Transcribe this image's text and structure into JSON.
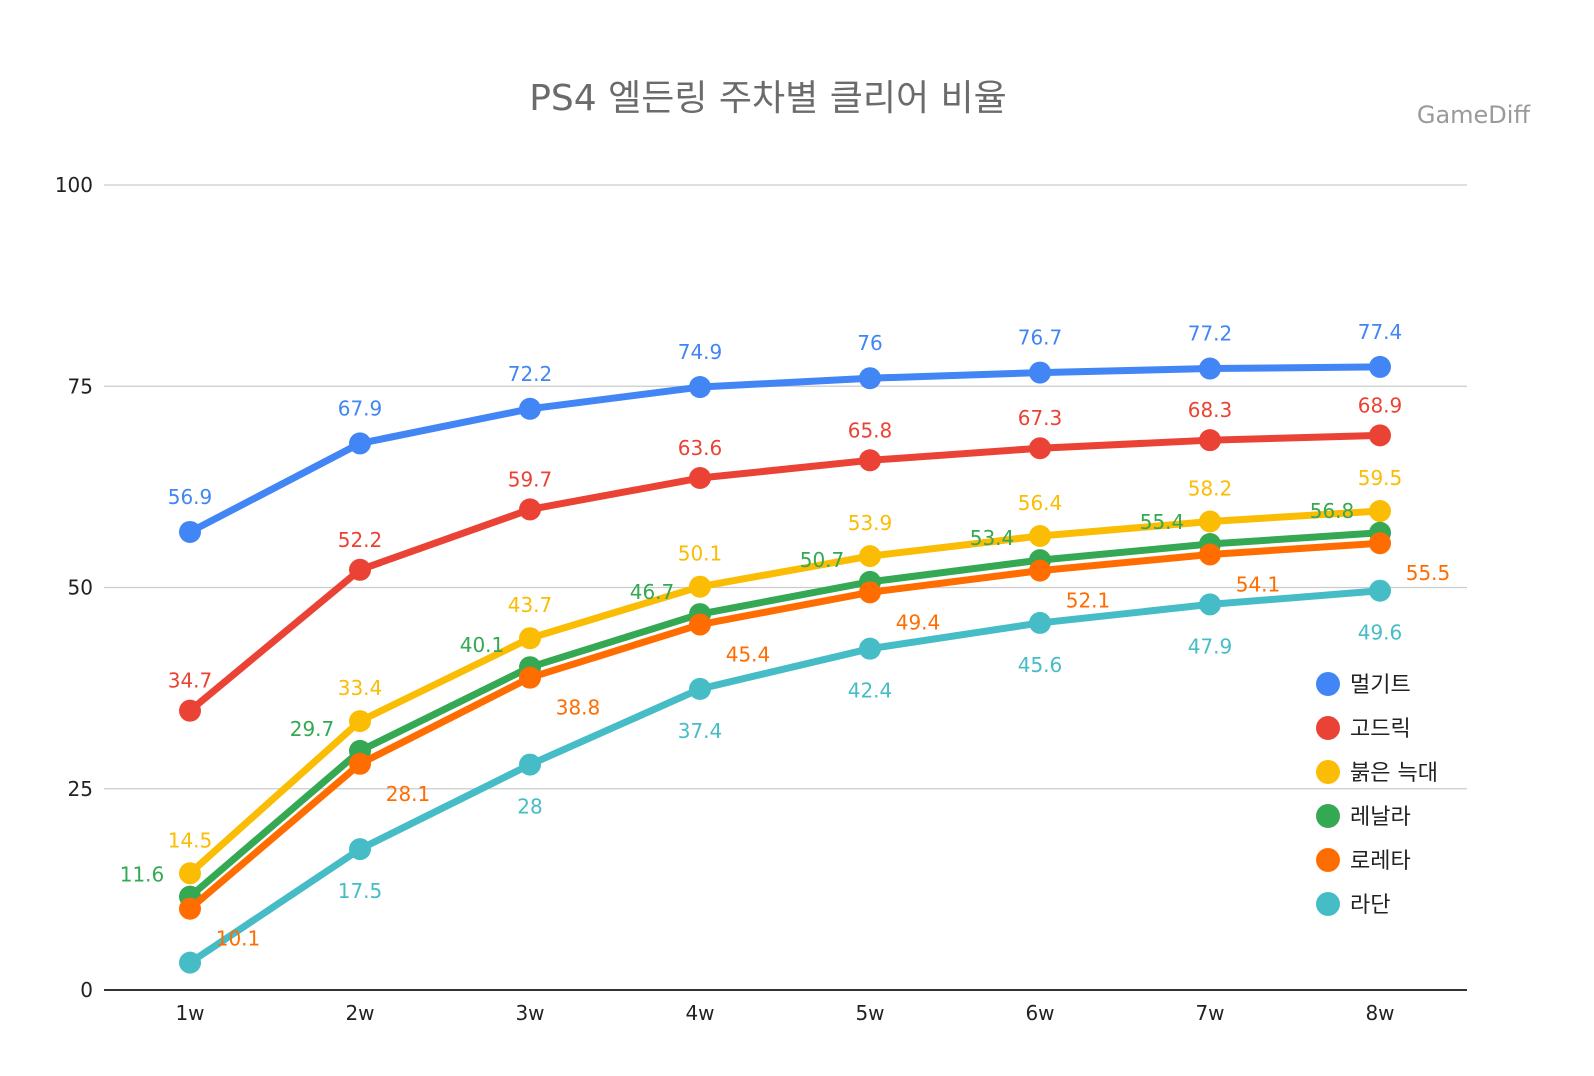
{
  "chart_data": {
    "type": "line",
    "title": "PS4 엘든링 주차별 클리어 비율",
    "watermark": "GameDiff",
    "categories": [
      "1w",
      "2w",
      "3w",
      "4w",
      "5w",
      "6w",
      "7w",
      "8w"
    ],
    "ylim": [
      0,
      100
    ],
    "yticks": [
      0,
      25,
      50,
      75,
      100
    ],
    "grid": true,
    "legend_position": "right",
    "series": [
      {
        "name": "멀기트",
        "color": "#4285f4",
        "values": [
          56.9,
          67.9,
          72.2,
          74.9,
          76,
          76.7,
          77.2,
          77.4
        ]
      },
      {
        "name": "고드릭",
        "color": "#ea4335",
        "values": [
          34.7,
          52.2,
          59.7,
          63.6,
          65.8,
          67.3,
          68.3,
          68.9
        ]
      },
      {
        "name": "붉은 늑대",
        "color": "#fbbc04",
        "values": [
          14.5,
          33.4,
          43.7,
          50.1,
          53.9,
          56.4,
          58.2,
          59.5
        ]
      },
      {
        "name": "레날라",
        "color": "#34a853",
        "values": [
          11.6,
          29.7,
          40.1,
          46.7,
          50.7,
          53.4,
          55.4,
          56.8
        ]
      },
      {
        "name": "로레타",
        "color": "#ff6d01",
        "values": [
          10.1,
          28.1,
          38.8,
          45.4,
          49.4,
          52.1,
          54.1,
          55.5
        ]
      },
      {
        "name": "라단",
        "color": "#46bdc6",
        "values": [
          3.4,
          17.5,
          28,
          37.4,
          42.4,
          45.6,
          47.9,
          49.6
        ]
      }
    ],
    "data_labels": [
      [
        "56.9",
        "67.9",
        "72.2",
        "74.9",
        "76",
        "76.7",
        "77.2",
        "77.4"
      ],
      [
        "34.7",
        "52.2",
        "59.7",
        "63.6",
        "65.8",
        "67.3",
        "68.3",
        "68.9"
      ],
      [
        "14.5",
        "33.4",
        "43.7",
        "50.1",
        "53.9",
        "56.4",
        "58.2",
        "59.5"
      ],
      [
        "11.6",
        "29.7",
        "40.1",
        "46.7",
        "50.7",
        "53.4",
        "55.4",
        "56.8"
      ],
      [
        "10.1",
        "28.1",
        "38.8",
        "45.4",
        "49.4",
        "52.1",
        "54.1",
        "55.5"
      ],
      [
        "",
        "17.5",
        "28",
        "37.4",
        "42.4",
        "45.6",
        "47.9",
        "49.6"
      ]
    ]
  }
}
